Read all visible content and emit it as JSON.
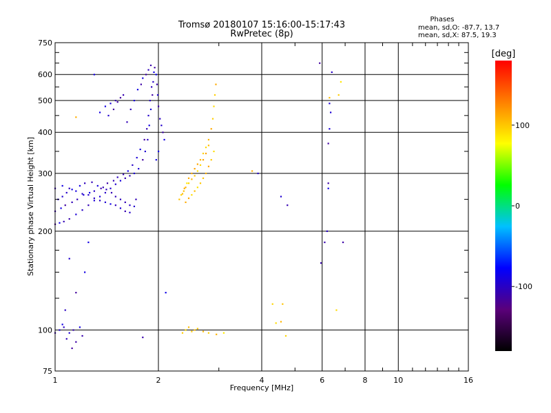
{
  "chart_data": {
    "type": "scatter",
    "title": "Tromsø 20180107 15:16:00-15:17:43",
    "subtitle": "RwPretec (8p)",
    "annotation": {
      "heading": "Phases",
      "line1": "mean, sd,O: -87.7, 13.7",
      "line2": "mean, sd,X:  87.5, 19.3"
    },
    "xlabel": "Frequency [MHz]",
    "ylabel": "Stationary phase Virtual Height [km]",
    "x_scale": "log",
    "y_scale": "log",
    "xlim": [
      1,
      16
    ],
    "ylim": [
      75,
      750
    ],
    "x_ticks": [
      {
        "value": 1,
        "label": "1"
      },
      {
        "value": 2,
        "label": "2"
      },
      {
        "value": 4,
        "label": "4"
      },
      {
        "value": 6,
        "label": "6"
      },
      {
        "value": 8,
        "label": "8"
      },
      {
        "value": 10,
        "label": "10"
      },
      {
        "value": 16,
        "label": "16"
      }
    ],
    "y_ticks": [
      {
        "value": 75,
        "label": "75"
      },
      {
        "value": 100,
        "label": "100"
      },
      {
        "value": 200,
        "label": "200"
      },
      {
        "value": 300,
        "label": "300"
      },
      {
        "value": 400,
        "label": "400"
      },
      {
        "value": 500,
        "label": "500"
      },
      {
        "value": 600,
        "label": "600"
      },
      {
        "value": 750,
        "label": "750"
      }
    ],
    "grid": true,
    "colorbar": {
      "label": "[deg]",
      "range": [
        -180,
        180
      ],
      "ticks": [
        {
          "value": 100,
          "label": "100"
        },
        {
          "value": 0,
          "label": "0"
        },
        {
          "value": -100,
          "label": "-100"
        }
      ],
      "colors": [
        "#000000",
        "#5a007a",
        "#0000ff",
        "#00c0ff",
        "#00ff00",
        "#ffff00",
        "#ff8000",
        "#ff0000"
      ]
    },
    "series": [
      {
        "trace": "o-mode",
        "phase_deg": -100,
        "points": [
          [
            1.0,
            210
          ],
          [
            1.03,
            212
          ],
          [
            1.06,
            214
          ],
          [
            1.1,
            218
          ],
          [
            1.15,
            225
          ],
          [
            1.2,
            232
          ],
          [
            1.25,
            240
          ],
          [
            1.3,
            248
          ],
          [
            1.35,
            255
          ],
          [
            1.4,
            262
          ],
          [
            1.45,
            270
          ],
          [
            1.5,
            278
          ],
          [
            1.55,
            285
          ],
          [
            1.6,
            290
          ],
          [
            1.65,
            295
          ],
          [
            1.7,
            300
          ],
          [
            1.75,
            310
          ],
          [
            1.8,
            330
          ],
          [
            1.83,
            350
          ],
          [
            1.86,
            380
          ],
          [
            1.88,
            420
          ],
          [
            1.9,
            470
          ],
          [
            1.92,
            520
          ],
          [
            1.93,
            570
          ],
          [
            1.94,
            610
          ],
          [
            1.02,
            250
          ],
          [
            1.05,
            255
          ],
          [
            1.08,
            262
          ],
          [
            1.12,
            268
          ],
          [
            1.18,
            275
          ],
          [
            1.22,
            280
          ],
          [
            1.28,
            282
          ],
          [
            1.33,
            275
          ],
          [
            1.38,
            272
          ],
          [
            1.42,
            280
          ],
          [
            1.48,
            285
          ],
          [
            1.52,
            292
          ],
          [
            1.58,
            298
          ],
          [
            1.63,
            305
          ],
          [
            1.68,
            318
          ],
          [
            1.73,
            335
          ],
          [
            1.77,
            355
          ],
          [
            1.82,
            380
          ],
          [
            1.85,
            410
          ],
          [
            1.87,
            450
          ],
          [
            1.89,
            500
          ],
          [
            1.91,
            550
          ],
          [
            1.0,
            230
          ],
          [
            1.04,
            235
          ],
          [
            1.07,
            240
          ],
          [
            1.12,
            245
          ],
          [
            1.16,
            250
          ],
          [
            1.21,
            258
          ],
          [
            1.26,
            262
          ],
          [
            1.3,
            265
          ],
          [
            1.36,
            270
          ],
          [
            1.41,
            268
          ],
          [
            1.46,
            262
          ],
          [
            1.5,
            255
          ],
          [
            1.55,
            250
          ],
          [
            1.6,
            245
          ],
          [
            1.65,
            240
          ],
          [
            1.7,
            238
          ],
          [
            1.0,
            270
          ],
          [
            1.05,
            275
          ],
          [
            1.1,
            270
          ],
          [
            1.15,
            265
          ],
          [
            1.2,
            260
          ],
          [
            1.25,
            258
          ],
          [
            1.3,
            252
          ],
          [
            1.35,
            248
          ],
          [
            1.4,
            245
          ],
          [
            1.45,
            242
          ],
          [
            1.5,
            240
          ],
          [
            1.55,
            235
          ],
          [
            1.6,
            230
          ],
          [
            1.65,
            228
          ],
          [
            1.72,
            250
          ],
          [
            1.62,
            430
          ],
          [
            1.66,
            470
          ],
          [
            1.7,
            500
          ],
          [
            1.74,
            540
          ],
          [
            1.78,
            560
          ],
          [
            1.8,
            585
          ],
          [
            1.84,
            600
          ],
          [
            1.87,
            620
          ],
          [
            1.9,
            640
          ],
          [
            1.95,
            630
          ],
          [
            1.97,
            600
          ],
          [
            1.98,
            560
          ],
          [
            1.99,
            520
          ],
          [
            2.0,
            480
          ],
          [
            2.02,
            440
          ],
          [
            2.04,
            420
          ],
          [
            2.06,
            400
          ],
          [
            2.08,
            380
          ],
          [
            2.0,
            350
          ],
          [
            1.97,
            330
          ],
          [
            1.35,
            460
          ],
          [
            1.4,
            480
          ],
          [
            1.45,
            490
          ],
          [
            1.5,
            500
          ],
          [
            1.55,
            510
          ],
          [
            1.58,
            520
          ],
          [
            1.52,
            495
          ],
          [
            1.48,
            470
          ],
          [
            1.43,
            450
          ],
          [
            1.0,
            98
          ],
          [
            1.03,
            100
          ],
          [
            1.06,
            102
          ],
          [
            1.1,
            98
          ],
          [
            1.13,
            100
          ],
          [
            1.18,
            102
          ],
          [
            1.2,
            96
          ],
          [
            1.08,
            94
          ],
          [
            1.05,
            104
          ],
          [
            1.15,
            92
          ],
          [
            1.07,
            115
          ],
          [
            1.15,
            130
          ],
          [
            1.22,
            150
          ],
          [
            1.1,
            165
          ],
          [
            1.25,
            185
          ],
          [
            1.12,
            88
          ],
          [
            1.3,
            600
          ],
          [
            1.8,
            95
          ],
          [
            2.1,
            130
          ],
          [
            3.9,
            300
          ],
          [
            4.55,
            255
          ],
          [
            4.75,
            240
          ],
          [
            5.95,
            160
          ],
          [
            6.1,
            185
          ],
          [
            6.2,
            200
          ],
          [
            6.25,
            370
          ],
          [
            6.3,
            410
          ],
          [
            6.3,
            490
          ],
          [
            6.35,
            460
          ],
          [
            6.4,
            610
          ],
          [
            5.9,
            650
          ],
          [
            6.25,
            280
          ],
          [
            6.25,
            270
          ],
          [
            6.9,
            185
          ]
        ]
      },
      {
        "trace": "x-mode",
        "phase_deg": 100,
        "points": [
          [
            2.35,
            260
          ],
          [
            2.38,
            270
          ],
          [
            2.42,
            280
          ],
          [
            2.45,
            290
          ],
          [
            2.5,
            300
          ],
          [
            2.55,
            310
          ],
          [
            2.6,
            320
          ],
          [
            2.65,
            330
          ],
          [
            2.7,
            345
          ],
          [
            2.75,
            360
          ],
          [
            2.8,
            380
          ],
          [
            2.85,
            410
          ],
          [
            2.88,
            440
          ],
          [
            2.9,
            480
          ],
          [
            2.92,
            520
          ],
          [
            2.94,
            560
          ],
          [
            2.3,
            250
          ],
          [
            2.33,
            258
          ],
          [
            2.37,
            265
          ],
          [
            2.4,
            272
          ],
          [
            2.45,
            280
          ],
          [
            2.5,
            288
          ],
          [
            2.55,
            295
          ],
          [
            2.6,
            305
          ],
          [
            2.65,
            318
          ],
          [
            2.7,
            330
          ],
          [
            2.75,
            345
          ],
          [
            2.8,
            365
          ],
          [
            2.4,
            245
          ],
          [
            2.45,
            252
          ],
          [
            2.5,
            258
          ],
          [
            2.55,
            265
          ],
          [
            2.6,
            272
          ],
          [
            2.65,
            280
          ],
          [
            2.7,
            290
          ],
          [
            2.75,
            300
          ],
          [
            2.8,
            315
          ],
          [
            2.85,
            330
          ],
          [
            2.9,
            350
          ],
          [
            2.35,
            98
          ],
          [
            2.4,
            100
          ],
          [
            2.45,
            102
          ],
          [
            2.5,
            99
          ],
          [
            2.55,
            100
          ],
          [
            2.6,
            101
          ],
          [
            2.7,
            99
          ],
          [
            2.8,
            98
          ],
          [
            2.95,
            97
          ],
          [
            3.1,
            98
          ],
          [
            4.3,
            120
          ],
          [
            4.6,
            120
          ],
          [
            4.4,
            105
          ],
          [
            4.55,
            106
          ],
          [
            4.7,
            96
          ],
          [
            6.6,
            115
          ],
          [
            6.3,
            510
          ],
          [
            6.7,
            520
          ],
          [
            6.8,
            570
          ],
          [
            3.75,
            305
          ],
          [
            1.15,
            445
          ]
        ]
      }
    ]
  }
}
